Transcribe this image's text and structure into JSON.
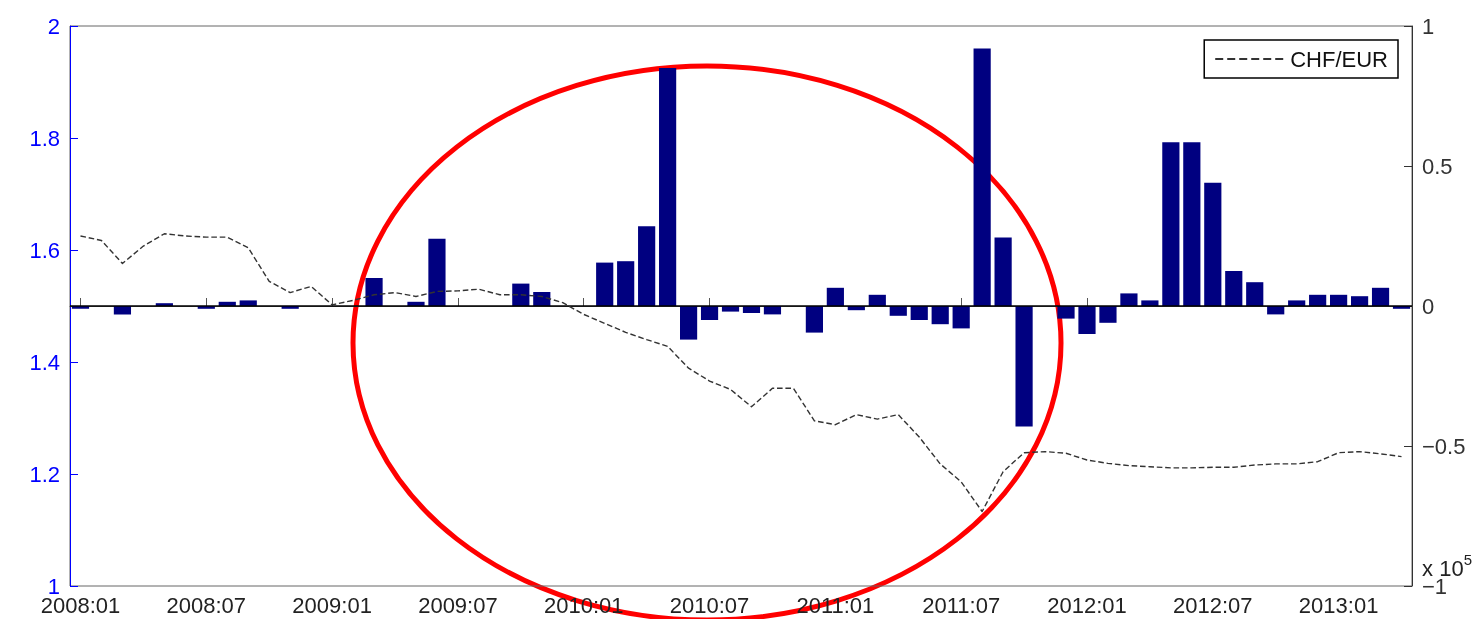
{
  "chart_data": {
    "type": "bar",
    "categories": [
      "2008:01",
      null,
      null,
      null,
      null,
      null,
      "2008:07",
      null,
      null,
      null,
      null,
      null,
      "2009:01",
      null,
      null,
      null,
      null,
      null,
      "2009:07",
      null,
      null,
      null,
      null,
      null,
      "2010:01",
      null,
      null,
      null,
      null,
      null,
      "2010:07",
      null,
      null,
      null,
      null,
      null,
      "2011:01",
      null,
      null,
      null,
      null,
      null,
      "2011:07",
      null,
      null,
      null,
      null,
      null,
      "2012:01",
      null,
      null,
      null,
      null,
      null,
      "2012:07",
      null,
      null,
      null,
      null,
      null,
      "2013:01",
      null,
      null,
      null
    ],
    "series": [
      {
        "axis": "y2",
        "color": "#000080",
        "values": [
          -0.01,
          0,
          -0.03,
          0,
          0.01,
          0,
          -0.01,
          0.015,
          0.02,
          0,
          -0.01,
          0,
          0,
          0,
          0.1,
          0,
          0.015,
          0.24,
          0,
          0,
          0,
          0.08,
          0.05,
          0,
          0,
          0.155,
          0.16,
          0.285,
          0.85,
          -0.12,
          -0.05,
          -0.02,
          -0.025,
          -0.03,
          0,
          -0.095,
          0.065,
          -0.015,
          0.04,
          -0.035,
          -0.05,
          -0.065,
          -0.08,
          0.92,
          0.245,
          -0.43,
          0,
          -0.045,
          -0.1,
          -0.06,
          0.045,
          0.02,
          0.585,
          0.585,
          0.44,
          0.125,
          0.085,
          -0.03,
          0.02,
          0.04,
          0.04,
          0.035,
          0.065,
          -0.01
        ]
      },
      {
        "type": "line",
        "axis": "y",
        "name": "CHF/EUR",
        "color": "#333333",
        "line_style": "dashed",
        "marker": "none",
        "values": [
          1.625,
          1.617,
          1.576,
          1.607,
          1.629,
          1.625,
          1.623,
          1.623,
          1.604,
          1.544,
          1.524,
          1.535,
          1.502,
          1.51,
          1.52,
          1.524,
          1.517,
          1.526,
          1.527,
          1.53,
          1.52,
          1.52,
          1.517,
          1.506,
          1.485,
          1.469,
          1.453,
          1.44,
          1.428,
          1.389,
          1.366,
          1.351,
          1.32,
          1.353,
          1.353,
          1.295,
          1.288,
          1.306,
          1.298,
          1.306,
          1.266,
          1.218,
          1.186,
          1.133,
          1.204,
          1.238,
          1.24,
          1.237,
          1.225,
          1.219,
          1.215,
          1.213,
          1.211,
          1.211,
          1.212,
          1.212,
          1.216,
          1.218,
          1.218,
          1.222,
          1.238,
          1.24,
          1.236,
          1.231
        ]
      }
    ],
    "ylim": [
      1,
      2
    ],
    "yticks": [
      1,
      1.2,
      1.4,
      1.6,
      1.8,
      2
    ],
    "y2lim": [
      -1,
      1
    ],
    "y2ticks": [
      -1,
      -0.5,
      0,
      0.5,
      1
    ],
    "ref_lines": [
      {
        "axis": "y2",
        "value": 0,
        "color": "#000000"
      }
    ],
    "annotations": [
      "x 10$^{5}$"
    ],
    "grid": false,
    "legend": "top right"
  }
}
